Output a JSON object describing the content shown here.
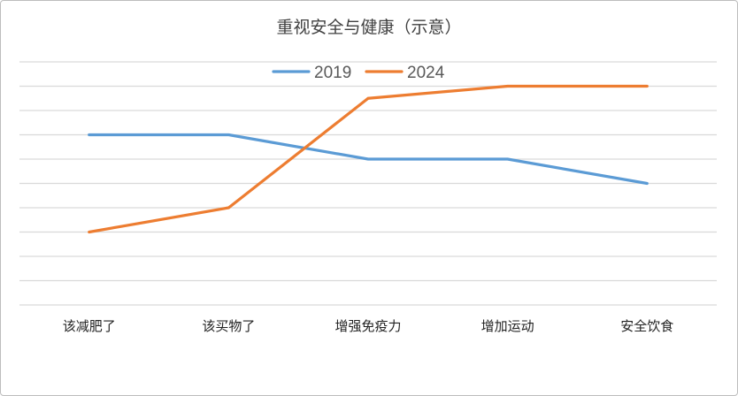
{
  "chart_data": {
    "type": "line",
    "title": "重视安全与健康（示意）",
    "categories": [
      "该减肥了",
      "该买物了",
      "增强免疫力",
      "增加运动",
      "安全饮食"
    ],
    "series": [
      {
        "name": "2019",
        "values": [
          7,
          7,
          6,
          6,
          5
        ],
        "color": "#5b9bd5"
      },
      {
        "name": "2024",
        "values": [
          3,
          4,
          8.5,
          9,
          9
        ],
        "color": "#ed7d31"
      }
    ],
    "ylim": [
      0,
      10
    ],
    "ytick_labels_visible": false,
    "grid": true,
    "legend": "top-center",
    "xlabel": "",
    "ylabel": ""
  }
}
